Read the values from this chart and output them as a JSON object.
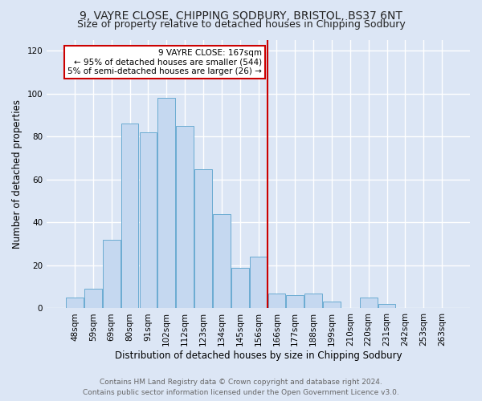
{
  "title": "9, VAYRE CLOSE, CHIPPING SODBURY, BRISTOL, BS37 6NT",
  "subtitle": "Size of property relative to detached houses in Chipping Sodbury",
  "xlabel": "Distribution of detached houses by size in Chipping Sodbury",
  "ylabel": "Number of detached properties",
  "bar_labels": [
    "48sqm",
    "59sqm",
    "69sqm",
    "80sqm",
    "91sqm",
    "102sqm",
    "112sqm",
    "123sqm",
    "134sqm",
    "145sqm",
    "156sqm",
    "166sqm",
    "177sqm",
    "188sqm",
    "199sqm",
    "210sqm",
    "220sqm",
    "231sqm",
    "242sqm",
    "253sqm",
    "263sqm"
  ],
  "bar_heights": [
    5,
    9,
    32,
    86,
    82,
    98,
    85,
    65,
    44,
    19,
    24,
    7,
    6,
    7,
    3,
    0,
    5,
    2,
    0,
    0,
    0
  ],
  "bar_color": "#c5d8f0",
  "bar_edge_color": "#6aabd2",
  "ylim": [
    0,
    125
  ],
  "yticks": [
    0,
    20,
    40,
    60,
    80,
    100,
    120
  ],
  "vline_x_index": 11,
  "vline_color": "#cc0000",
  "annotation_title": "9 VAYRE CLOSE: 167sqm",
  "annotation_line1": "← 95% of detached houses are smaller (544)",
  "annotation_line2": "5% of semi-detached houses are larger (26) →",
  "annotation_box_color": "#ffffff",
  "annotation_border_color": "#cc0000",
  "footer1": "Contains HM Land Registry data © Crown copyright and database right 2024.",
  "footer2": "Contains public sector information licensed under the Open Government Licence v3.0.",
  "background_color": "#dce6f5",
  "plot_background_color": "#dce6f5",
  "grid_color": "#ffffff",
  "title_fontsize": 10,
  "subtitle_fontsize": 9,
  "axis_label_fontsize": 8.5,
  "tick_fontsize": 7.5,
  "footer_fontsize": 6.5
}
